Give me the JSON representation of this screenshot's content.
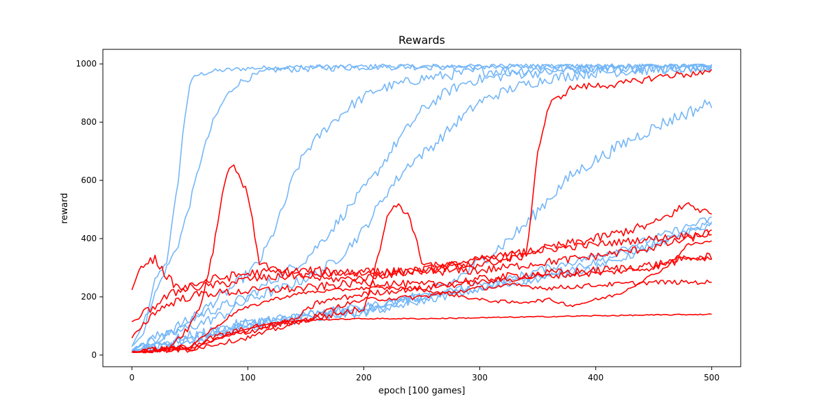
{
  "chart_data": {
    "type": "line",
    "title": "Rewards",
    "xlabel": "epoch [100 games]",
    "ylabel": "reward",
    "xlim": [
      -25,
      525
    ],
    "ylim": [
      -40,
      1050
    ],
    "xticks": [
      0,
      100,
      200,
      300,
      400,
      500
    ],
    "yticks": [
      0,
      200,
      400,
      600,
      800,
      1000
    ],
    "grid": false,
    "legend": "none",
    "colors": {
      "blue": "#74b6f7",
      "red": "#ff0000"
    },
    "series": [
      {
        "color": "blue",
        "noise": 8,
        "points": [
          [
            0,
            30
          ],
          [
            10,
            70
          ],
          [
            20,
            260
          ],
          [
            30,
            320
          ],
          [
            40,
            600
          ],
          [
            45,
            800
          ],
          [
            50,
            930
          ],
          [
            55,
            960
          ],
          [
            70,
            975
          ],
          [
            100,
            985
          ],
          [
            150,
            990
          ],
          [
            500,
            995
          ]
        ]
      },
      {
        "color": "blue",
        "noise": 12,
        "points": [
          [
            0,
            30
          ],
          [
            10,
            110
          ],
          [
            20,
            210
          ],
          [
            30,
            300
          ],
          [
            40,
            380
          ],
          [
            50,
            520
          ],
          [
            60,
            680
          ],
          [
            70,
            800
          ],
          [
            80,
            880
          ],
          [
            90,
            930
          ],
          [
            100,
            950
          ],
          [
            120,
            980
          ],
          [
            200,
            990
          ],
          [
            500,
            995
          ]
        ]
      },
      {
        "color": "blue",
        "noise": 18,
        "points": [
          [
            0,
            15
          ],
          [
            20,
            50
          ],
          [
            40,
            90
          ],
          [
            60,
            150
          ],
          [
            80,
            210
          ],
          [
            100,
            280
          ],
          [
            110,
            320
          ],
          [
            120,
            400
          ],
          [
            130,
            500
          ],
          [
            140,
            620
          ],
          [
            150,
            700
          ],
          [
            170,
            790
          ],
          [
            190,
            860
          ],
          [
            210,
            910
          ],
          [
            250,
            950
          ],
          [
            300,
            975
          ],
          [
            400,
            985
          ],
          [
            500,
            990
          ]
        ]
      },
      {
        "color": "blue",
        "noise": 18,
        "points": [
          [
            0,
            20
          ],
          [
            30,
            80
          ],
          [
            60,
            140
          ],
          [
            100,
            200
          ],
          [
            130,
            280
          ],
          [
            150,
            330
          ],
          [
            170,
            420
          ],
          [
            190,
            520
          ],
          [
            210,
            620
          ],
          [
            230,
            740
          ],
          [
            250,
            840
          ],
          [
            270,
            900
          ],
          [
            290,
            940
          ],
          [
            330,
            965
          ],
          [
            400,
            985
          ],
          [
            500,
            990
          ]
        ]
      },
      {
        "color": "blue",
        "noise": 18,
        "points": [
          [
            0,
            20
          ],
          [
            40,
            80
          ],
          [
            80,
            140
          ],
          [
            100,
            190
          ],
          [
            130,
            230
          ],
          [
            160,
            280
          ],
          [
            180,
            340
          ],
          [
            200,
            430
          ],
          [
            220,
            560
          ],
          [
            240,
            660
          ],
          [
            260,
            720
          ],
          [
            280,
            800
          ],
          [
            300,
            870
          ],
          [
            330,
            920
          ],
          [
            360,
            950
          ],
          [
            400,
            970
          ],
          [
            500,
            990
          ]
        ]
      },
      {
        "color": "blue",
        "noise": 22,
        "points": [
          [
            0,
            15
          ],
          [
            60,
            70
          ],
          [
            100,
            110
          ],
          [
            150,
            130
          ],
          [
            200,
            150
          ],
          [
            250,
            200
          ],
          [
            280,
            260
          ],
          [
            300,
            320
          ],
          [
            320,
            380
          ],
          [
            340,
            450
          ],
          [
            360,
            540
          ],
          [
            380,
            620
          ],
          [
            400,
            670
          ],
          [
            430,
            740
          ],
          [
            460,
            800
          ],
          [
            490,
            850
          ],
          [
            500,
            870
          ]
        ]
      },
      {
        "color": "blue",
        "noise": 14,
        "points": [
          [
            0,
            12
          ],
          [
            50,
            50
          ],
          [
            100,
            100
          ],
          [
            150,
            140
          ],
          [
            200,
            160
          ],
          [
            250,
            200
          ],
          [
            300,
            230
          ],
          [
            350,
            290
          ],
          [
            400,
            340
          ],
          [
            450,
            400
          ],
          [
            500,
            470
          ]
        ]
      },
      {
        "color": "blue",
        "noise": 14,
        "points": [
          [
            0,
            12
          ],
          [
            50,
            60
          ],
          [
            100,
            110
          ],
          [
            150,
            140
          ],
          [
            200,
            165
          ],
          [
            250,
            200
          ],
          [
            300,
            240
          ],
          [
            350,
            270
          ],
          [
            400,
            320
          ],
          [
            450,
            380
          ],
          [
            500,
            450
          ]
        ]
      },
      {
        "color": "blue",
        "noise": 12,
        "points": [
          [
            0,
            10
          ],
          [
            50,
            40
          ],
          [
            100,
            95
          ],
          [
            150,
            125
          ],
          [
            200,
            145
          ],
          [
            250,
            185
          ],
          [
            300,
            225
          ],
          [
            350,
            260
          ],
          [
            400,
            300
          ],
          [
            450,
            370
          ],
          [
            500,
            460
          ]
        ]
      },
      {
        "color": "red",
        "noise": 14,
        "points": [
          [
            0,
            220
          ],
          [
            5,
            280
          ],
          [
            10,
            315
          ],
          [
            20,
            330
          ],
          [
            30,
            270
          ],
          [
            40,
            230
          ],
          [
            60,
            235
          ],
          [
            80,
            245
          ],
          [
            100,
            260
          ],
          [
            150,
            275
          ],
          [
            200,
            285
          ],
          [
            250,
            285
          ],
          [
            300,
            290
          ],
          [
            350,
            315
          ],
          [
            400,
            340
          ],
          [
            450,
            370
          ],
          [
            500,
            420
          ]
        ]
      },
      {
        "color": "red",
        "noise": 16,
        "points": [
          [
            0,
            110
          ],
          [
            10,
            140
          ],
          [
            20,
            170
          ],
          [
            30,
            200
          ],
          [
            50,
            240
          ],
          [
            70,
            260
          ],
          [
            100,
            280
          ],
          [
            150,
            290
          ],
          [
            200,
            280
          ],
          [
            250,
            290
          ],
          [
            300,
            320
          ],
          [
            350,
            360
          ],
          [
            400,
            400
          ],
          [
            450,
            450
          ],
          [
            480,
            520
          ],
          [
            500,
            480
          ]
        ]
      },
      {
        "color": "red",
        "noise": 12,
        "points": [
          [
            0,
            10
          ],
          [
            30,
            20
          ],
          [
            40,
            60
          ],
          [
            50,
            100
          ],
          [
            60,
            180
          ],
          [
            70,
            360
          ],
          [
            75,
            480
          ],
          [
            80,
            600
          ],
          [
            85,
            650
          ],
          [
            90,
            640
          ],
          [
            100,
            550
          ],
          [
            110,
            320
          ],
          [
            130,
            280
          ],
          [
            150,
            270
          ],
          [
            170,
            260
          ],
          [
            200,
            265
          ],
          [
            250,
            290
          ],
          [
            300,
            330
          ],
          [
            350,
            360
          ],
          [
            400,
            380
          ],
          [
            450,
            400
          ],
          [
            500,
            420
          ]
        ]
      },
      {
        "color": "red",
        "noise": 12,
        "points": [
          [
            0,
            10
          ],
          [
            50,
            20
          ],
          [
            70,
            60
          ],
          [
            100,
            90
          ],
          [
            150,
            120
          ],
          [
            200,
            160
          ],
          [
            210,
            300
          ],
          [
            220,
            480
          ],
          [
            230,
            520
          ],
          [
            240,
            470
          ],
          [
            250,
            320
          ],
          [
            270,
            300
          ],
          [
            300,
            310
          ],
          [
            340,
            340
          ],
          [
            350,
            700
          ],
          [
            360,
            860
          ],
          [
            380,
            920
          ],
          [
            420,
            930
          ],
          [
            460,
            960
          ],
          [
            500,
            970
          ]
        ]
      },
      {
        "color": "red",
        "noise": 14,
        "points": [
          [
            0,
            60
          ],
          [
            20,
            150
          ],
          [
            40,
            190
          ],
          [
            60,
            210
          ],
          [
            100,
            220
          ],
          [
            150,
            230
          ],
          [
            200,
            250
          ],
          [
            250,
            240
          ],
          [
            300,
            260
          ],
          [
            350,
            280
          ],
          [
            400,
            290
          ],
          [
            450,
            310
          ],
          [
            480,
            330
          ],
          [
            500,
            340
          ]
        ]
      },
      {
        "color": "red",
        "noise": 10,
        "points": [
          [
            0,
            10
          ],
          [
            50,
            30
          ],
          [
            100,
            80
          ],
          [
            140,
            120
          ],
          [
            160,
            180
          ],
          [
            200,
            210
          ],
          [
            250,
            230
          ],
          [
            300,
            250
          ],
          [
            350,
            270
          ],
          [
            400,
            280
          ],
          [
            450,
            300
          ],
          [
            480,
            340
          ],
          [
            500,
            330
          ]
        ]
      },
      {
        "color": "red",
        "noise": 8,
        "points": [
          [
            0,
            10
          ],
          [
            50,
            20
          ],
          [
            100,
            60
          ],
          [
            150,
            120
          ],
          [
            180,
            170
          ],
          [
            200,
            190
          ],
          [
            250,
            200
          ],
          [
            300,
            230
          ],
          [
            330,
            240
          ],
          [
            360,
            230
          ],
          [
            400,
            240
          ],
          [
            450,
            250
          ],
          [
            500,
            250
          ]
        ]
      },
      {
        "color": "red",
        "noise": 6,
        "points": [
          [
            0,
            10
          ],
          [
            50,
            30
          ],
          [
            90,
            150
          ],
          [
            120,
            190
          ],
          [
            150,
            215
          ],
          [
            200,
            230
          ],
          [
            240,
            230
          ],
          [
            280,
            205
          ],
          [
            300,
            190
          ],
          [
            330,
            180
          ],
          [
            360,
            190
          ],
          [
            380,
            170
          ],
          [
            420,
            210
          ],
          [
            460,
            300
          ],
          [
            480,
            380
          ],
          [
            500,
            390
          ]
        ]
      },
      {
        "color": "red",
        "noise": 2,
        "points": [
          [
            0,
            10
          ],
          [
            50,
            20
          ],
          [
            90,
            80
          ],
          [
            120,
            110
          ],
          [
            150,
            120
          ],
          [
            200,
            125
          ],
          [
            250,
            125
          ],
          [
            300,
            128
          ],
          [
            400,
            135
          ],
          [
            500,
            140
          ]
        ]
      }
    ]
  }
}
